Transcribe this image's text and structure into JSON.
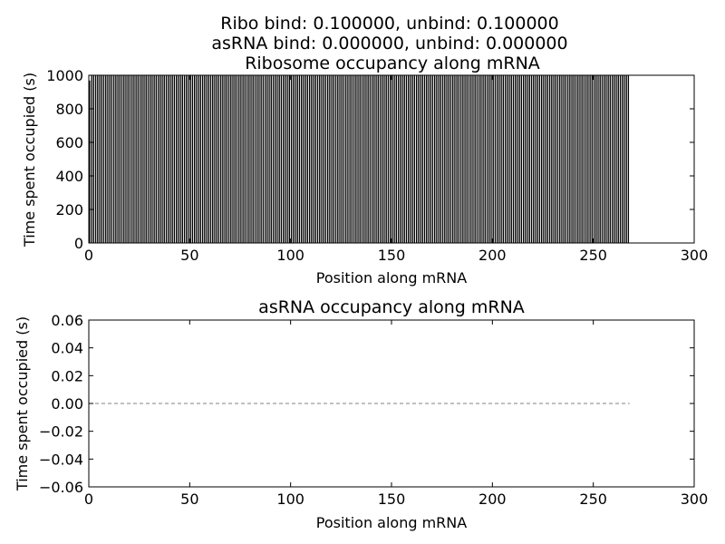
{
  "figure": {
    "title_lines": [
      "Ribo bind: 0.100000, unbind: 0.100000",
      "asRNA bind: 0.000000, unbind: 0.000000"
    ]
  },
  "chart_data": [
    {
      "type": "bar",
      "title": "Ribosome occupancy along mRNA",
      "xlabel": "Position along mRNA",
      "ylabel": "Time spent occupied (s)",
      "xlim": [
        0,
        300
      ],
      "ylim": [
        0,
        1000
      ],
      "xticks": [
        "0",
        "50",
        "100",
        "150",
        "200",
        "250",
        "300"
      ],
      "yticks": [
        "0",
        "200",
        "400",
        "600",
        "800",
        "1000"
      ],
      "grid": false,
      "bar_color": "#000000",
      "bar_edge_color": "#ffffff",
      "x": [
        0,
        268
      ],
      "bar_width": 0.8,
      "values": [
        1000,
        1000
      ],
      "value_note_x_range": "positions 0 to 267 (268 bars), each ~1000 s; first bar ~970 s"
    },
    {
      "type": "line",
      "title": "asRNA occupancy along mRNA",
      "xlabel": "Position along mRNA",
      "ylabel": "Time spent occupied (s)",
      "xlim": [
        0,
        300
      ],
      "ylim": [
        -0.06,
        0.06
      ],
      "xticks": [
        "0",
        "50",
        "100",
        "150",
        "200",
        "250",
        "300"
      ],
      "yticks": [
        "0.06",
        "0.04",
        "0.02",
        "0.00",
        "−0.02",
        "−0.04",
        "−0.06"
      ],
      "grid": false,
      "series": [
        {
          "x": [
            0,
            268
          ],
          "y": [
            0,
            0
          ],
          "color": "#808080",
          "style": "dashed"
        }
      ]
    }
  ]
}
